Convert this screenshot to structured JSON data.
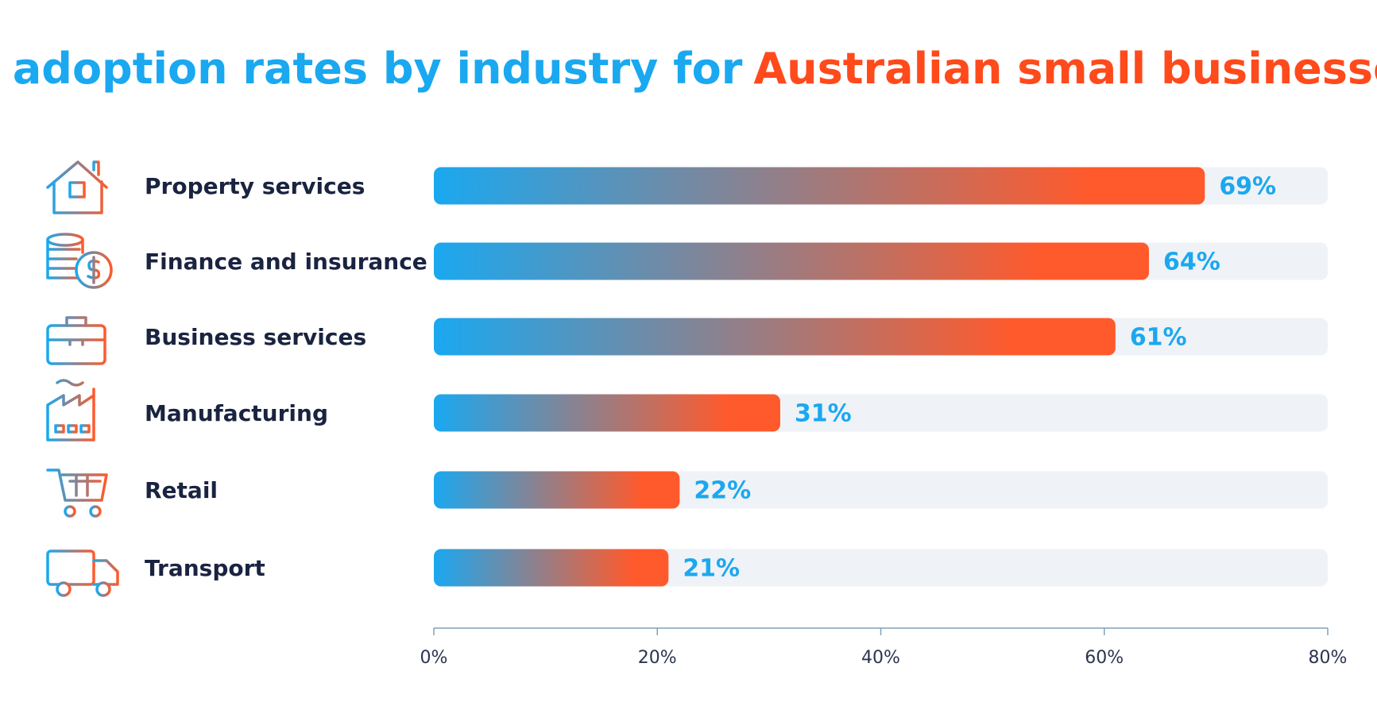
{
  "chart_data": {
    "type": "bar",
    "orientation": "horizontal",
    "title": [
      "AI adoption rates by industry for",
      "Australian small businesses"
    ],
    "categories": [
      "Property services",
      "Finance and insurance",
      "Business services",
      "Manufacturing",
      "Retail",
      "Transport"
    ],
    "values": [
      69,
      64,
      61,
      31,
      22,
      21
    ],
    "value_labels": [
      "69%",
      "64%",
      "61%",
      "31%",
      "22%",
      "21%"
    ],
    "color": [
      "#1aa8f0",
      "#ff5a2c"
    ],
    "xlim": [
      0,
      80
    ],
    "xticks": [
      {
        "value": 0,
        "label": "0%"
      },
      {
        "value": 20,
        "label": "20%"
      },
      {
        "value": 40,
        "label": "40%"
      },
      {
        "value": 60,
        "label": "60%"
      },
      {
        "value": 80,
        "label": "80%"
      }
    ],
    "grid": false
  }
}
